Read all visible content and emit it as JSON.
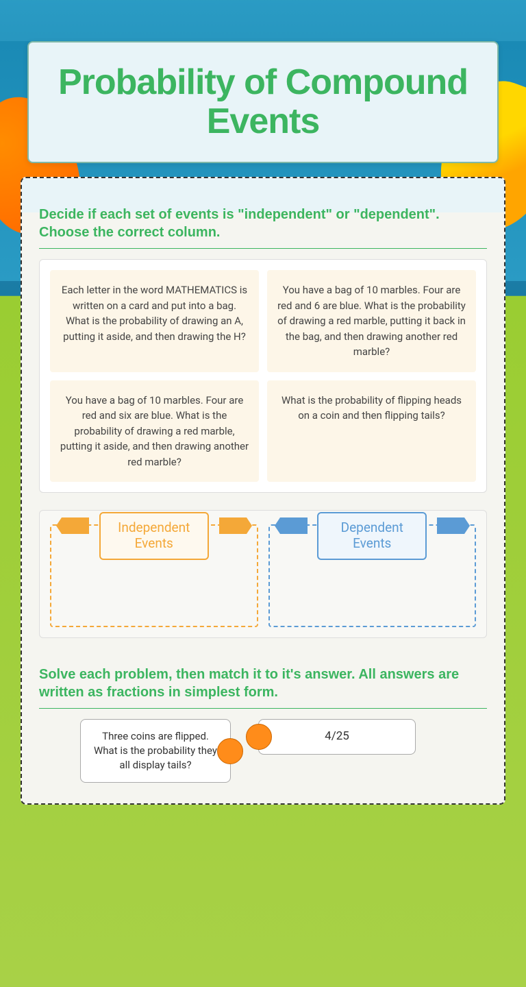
{
  "title": "Probability of Compound Events",
  "instruction1": "Decide if each set of events is \"independent\" or \"dependent\".  Choose the correct column.",
  "questions": [
    "Each letter in the word MATHEMATICS is written on a card and put into a bag. What is the probability of drawing an A, putting it aside, and then drawing the H?",
    "You have a bag of 10 marbles. Four are red and 6 are blue. What is the probability of drawing a red marble, putting it back in the bag, and then drawing another red marble?",
    "You have a bag of 10 marbles. Four are red and six are blue. What is the probability of drawing a red marble, putting it aside, and then drawing another red marble?",
    "What is the probability of flipping heads on a coin and then flipping tails?"
  ],
  "zones": {
    "independent": "Independent Events",
    "dependent": "Dependent Events"
  },
  "instruction2": "Solve each problem, then match it to it's answer. All answers are written as fractions in simplest form.",
  "match": {
    "question": "Three coins are flipped. What is the probability they all display tails?",
    "answer": "4/25"
  },
  "colors": {
    "primary_green": "#3cb560",
    "card_cream": "#fdf6e8",
    "zone_orange": "#f4a838",
    "zone_blue": "#5b9bd5",
    "connector_orange": "#ff8c1a"
  }
}
